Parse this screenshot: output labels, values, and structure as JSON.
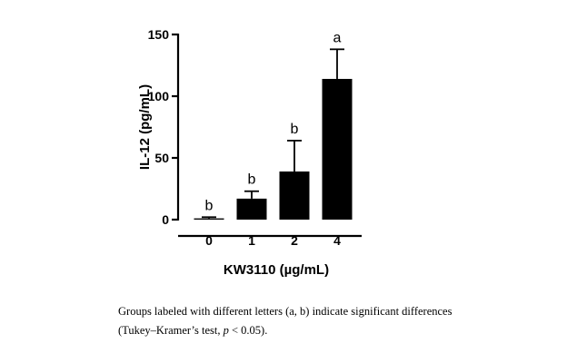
{
  "chart_data": {
    "type": "bar",
    "categories": [
      "0",
      "1",
      "2",
      "4"
    ],
    "values": [
      1,
      17,
      39,
      114
    ],
    "errors": [
      1,
      6,
      25,
      24
    ],
    "letters": [
      "b",
      "b",
      "b",
      "a"
    ],
    "xlabel": "KW3110 (µg/mL)",
    "ylabel": "IL-12 (pg/mL)",
    "ylim": [
      0,
      150
    ],
    "yticks": [
      0,
      50,
      100,
      150
    ],
    "bar_color": "#000000",
    "grid": false,
    "legend": "none"
  },
  "caption": {
    "line1": "Groups labeled with different letters (a, b) indicate significant differences",
    "line2_prefix": "(Tukey–Kramer’s test, ",
    "line2_p": "p",
    "line2_suffix": " < 0.05)."
  }
}
